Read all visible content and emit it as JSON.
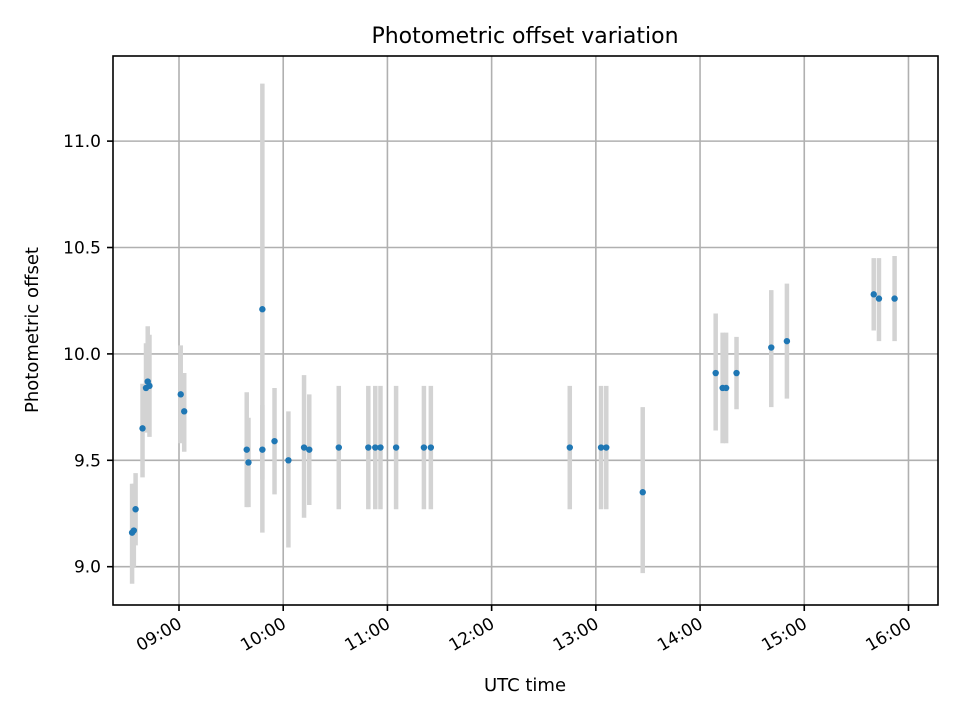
{
  "chart_data": {
    "type": "scatter",
    "title": "Photometric offset variation",
    "xlabel": "UTC time",
    "ylabel": "Photometric offset",
    "x_unit": "UTC time (HH:MM)",
    "xlim": [
      "08:22",
      "16:17"
    ],
    "ylim": [
      8.82,
      11.4
    ],
    "x_ticks": [
      "09:00",
      "10:00",
      "11:00",
      "12:00",
      "13:00",
      "14:00",
      "15:00",
      "16:00"
    ],
    "y_ticks": [
      "9.0",
      "9.5",
      "10.0",
      "10.5",
      "11.0"
    ],
    "grid": true,
    "point_color": "#1f77b4",
    "errorbar_color": "#d3d3d3",
    "points": [
      {
        "x": "08:33",
        "y": 9.16,
        "ylow": 8.92,
        "yhigh": 9.39
      },
      {
        "x": "08:34",
        "y": 9.17,
        "ylow": 9.0,
        "yhigh": 9.39
      },
      {
        "x": "08:35",
        "y": 9.27,
        "ylow": 9.1,
        "yhigh": 9.44
      },
      {
        "x": "08:39",
        "y": 9.65,
        "ylow": 9.42,
        "yhigh": 9.86
      },
      {
        "x": "08:41",
        "y": 9.84,
        "ylow": 9.63,
        "yhigh": 10.05
      },
      {
        "x": "08:42",
        "y": 9.87,
        "ylow": 9.64,
        "yhigh": 10.13
      },
      {
        "x": "08:43",
        "y": 9.85,
        "ylow": 9.61,
        "yhigh": 10.09
      },
      {
        "x": "09:01",
        "y": 9.81,
        "ylow": 9.58,
        "yhigh": 10.04
      },
      {
        "x": "09:03",
        "y": 9.73,
        "ylow": 9.54,
        "yhigh": 9.91
      },
      {
        "x": "09:39",
        "y": 9.55,
        "ylow": 9.28,
        "yhigh": 9.82
      },
      {
        "x": "09:40",
        "y": 9.49,
        "ylow": 9.28,
        "yhigh": 9.7
      },
      {
        "x": "09:48",
        "y": 9.55,
        "ylow": 9.41,
        "yhigh": 9.76
      },
      {
        "x": "09:48",
        "y": 10.21,
        "ylow": 9.16,
        "yhigh": 11.27
      },
      {
        "x": "09:55",
        "y": 9.59,
        "ylow": 9.34,
        "yhigh": 9.84
      },
      {
        "x": "10:03",
        "y": 9.5,
        "ylow": 9.09,
        "yhigh": 9.73
      },
      {
        "x": "10:12",
        "y": 9.56,
        "ylow": 9.23,
        "yhigh": 9.9
      },
      {
        "x": "10:15",
        "y": 9.55,
        "ylow": 9.29,
        "yhigh": 9.81
      },
      {
        "x": "10:32",
        "y": 9.56,
        "ylow": 9.27,
        "yhigh": 9.85
      },
      {
        "x": "10:49",
        "y": 9.56,
        "ylow": 9.27,
        "yhigh": 9.85
      },
      {
        "x": "10:53",
        "y": 9.56,
        "ylow": 9.27,
        "yhigh": 9.85
      },
      {
        "x": "10:56",
        "y": 9.56,
        "ylow": 9.27,
        "yhigh": 9.85
      },
      {
        "x": "11:05",
        "y": 9.56,
        "ylow": 9.27,
        "yhigh": 9.85
      },
      {
        "x": "11:21",
        "y": 9.56,
        "ylow": 9.27,
        "yhigh": 9.85
      },
      {
        "x": "11:25",
        "y": 9.56,
        "ylow": 9.27,
        "yhigh": 9.85
      },
      {
        "x": "12:45",
        "y": 9.56,
        "ylow": 9.27,
        "yhigh": 9.85
      },
      {
        "x": "13:03",
        "y": 9.56,
        "ylow": 9.27,
        "yhigh": 9.85
      },
      {
        "x": "13:06",
        "y": 9.56,
        "ylow": 9.27,
        "yhigh": 9.85
      },
      {
        "x": "13:27",
        "y": 9.35,
        "ylow": 8.97,
        "yhigh": 9.75
      },
      {
        "x": "14:09",
        "y": 9.91,
        "ylow": 9.64,
        "yhigh": 10.19
      },
      {
        "x": "14:13",
        "y": 9.84,
        "ylow": 9.58,
        "yhigh": 10.1
      },
      {
        "x": "14:15",
        "y": 9.84,
        "ylow": 9.58,
        "yhigh": 10.1
      },
      {
        "x": "14:21",
        "y": 9.91,
        "ylow": 9.74,
        "yhigh": 10.08
      },
      {
        "x": "14:41",
        "y": 10.03,
        "ylow": 9.75,
        "yhigh": 10.3
      },
      {
        "x": "14:50",
        "y": 10.06,
        "ylow": 9.79,
        "yhigh": 10.33
      },
      {
        "x": "15:40",
        "y": 10.28,
        "ylow": 10.11,
        "yhigh": 10.45
      },
      {
        "x": "15:43",
        "y": 10.26,
        "ylow": 10.06,
        "yhigh": 10.45
      },
      {
        "x": "15:52",
        "y": 10.26,
        "ylow": 10.06,
        "yhigh": 10.46
      }
    ]
  }
}
